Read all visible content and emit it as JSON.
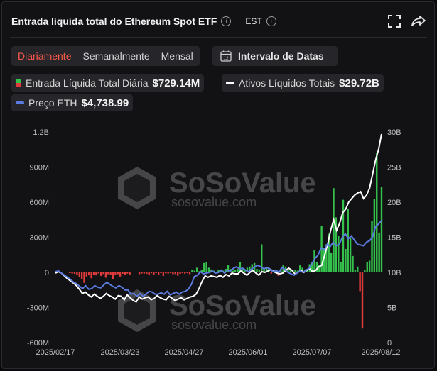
{
  "header": {
    "title": "Entrada líquida total do Ethereum Spot ETF",
    "timezone": "EST"
  },
  "tabs": [
    {
      "label": "Diariamente",
      "active": true
    },
    {
      "label": "Semanalmente",
      "active": false
    },
    {
      "label": "Mensal",
      "active": false
    }
  ],
  "date_range": {
    "label": "Intervalo de Datas",
    "icon_text": "12"
  },
  "legend": {
    "daily": {
      "label": "Entrada Líquida Total Diária",
      "value": "$729.14M"
    },
    "assets": {
      "label": "Ativos Líquidos Totais",
      "value": "$29.72B"
    },
    "price": {
      "label": "Preço ETH",
      "value": "$4,738.99"
    }
  },
  "watermark": {
    "brand": "SoSoValue",
    "url": "sosovalue.com"
  },
  "colors": {
    "accent": "#ff5a4a",
    "positive": "#35c24c",
    "negative": "#e23b3b",
    "assets_line": "#ffffff",
    "price_line": "#5b7be0"
  },
  "chart_data": {
    "type": "bar",
    "x_ticks": [
      "2025/02/17",
      "2025/03/23",
      "2025/04/27",
      "2025/06/01",
      "2025/07/07",
      "2025/08/12"
    ],
    "x_range": [
      "2025/02/17",
      "2025/08/12"
    ],
    "left_axis": {
      "ticks": [
        "1.2B",
        "900M",
        "600M",
        "300M",
        "0",
        "-300M",
        "-600M"
      ],
      "ylim": [
        -600,
        1200
      ],
      "unit": "M USD"
    },
    "right_axis": {
      "ticks": [
        "30B",
        "25B",
        "20B",
        "15B",
        "10B",
        "5B",
        "0"
      ],
      "ylim": [
        0,
        30
      ],
      "unit": "B USD"
    },
    "series": [
      {
        "name": "Entrada Líquida Total Diária",
        "type": "bar",
        "axis": "left",
        "values": [
          0,
          0,
          0,
          0,
          0,
          0,
          -5,
          -8,
          -12,
          -20,
          -40,
          -60,
          -90,
          -35,
          -25,
          -50,
          -18,
          -25,
          -10,
          -30,
          -14,
          -45,
          -15,
          -20,
          -55,
          -18,
          -15,
          -35,
          -12,
          -20,
          -10,
          -18,
          0,
          0,
          0,
          -15,
          -9,
          -10,
          -12,
          -25,
          -8,
          -18,
          -5,
          -20,
          -6,
          -30,
          -8,
          -10,
          -6,
          -15,
          -14,
          -28,
          -12,
          -6,
          -10,
          -6,
          -15,
          25,
          15,
          40,
          10,
          20,
          80,
          90,
          40,
          25,
          15,
          -10,
          20,
          25,
          15,
          30,
          60,
          30,
          15,
          20,
          30,
          90,
          40,
          25,
          40,
          50,
          70,
          80,
          30,
          25,
          240,
          30,
          40,
          40,
          -10,
          20,
          20,
          -30,
          30,
          60,
          50,
          25,
          30,
          20,
          20,
          15,
          60,
          40,
          25,
          30,
          70,
          85,
          190,
          90,
          60,
          400,
          210,
          240,
          330,
          170,
          720,
          470,
          310,
          90,
          620,
          200,
          540,
          290,
          140,
          20,
          50,
          -160,
          -480,
          20,
          90,
          100,
          440,
          630,
          1020,
          340,
          730
        ]
      },
      {
        "name": "Ativos Líquidos Totais",
        "type": "line",
        "axis": "right",
        "values": [
          9.9,
          10.1,
          9.9,
          9.5,
          9.1,
          8.8,
          8.5,
          8.1,
          7.6,
          7.0,
          7.2,
          6.8,
          6.5,
          6.9,
          6.6,
          6.3,
          6.6,
          7.0,
          6.7,
          6.5,
          6.2,
          6.7,
          6.6,
          6.1,
          6.8,
          6.4,
          6.0,
          5.8,
          6.5,
          6.2,
          6.4,
          6.5,
          6.1,
          6.3,
          6.7,
          6.4,
          6.2,
          6.1,
          6.6,
          6.3,
          6.0,
          6.2,
          6.4,
          6.1,
          6.3,
          6.5,
          6.6,
          6.9,
          7.7,
          8.7,
          9.5,
          9.3,
          9.5,
          9.4,
          9.3,
          9.6,
          9.3,
          9.7,
          9.5,
          9.9,
          9.8,
          9.8,
          10.2,
          9.9,
          9.6,
          10.0,
          10.3,
          9.9,
          9.6,
          10.1,
          10.0,
          10.2,
          10.4,
          10.1,
          9.9,
          9.8,
          9.9,
          10.3,
          10.6,
          10.3,
          9.8,
          10.0,
          10.3,
          10.0,
          10.3,
          10.5,
          10.1,
          10.3,
          10.8,
          11.0,
          12.5,
          14.0,
          16.0,
          17.5,
          16.0,
          17.0,
          18.5,
          19.0,
          20.0,
          20.5,
          21.0,
          21.3,
          21.5,
          20.5,
          21.0,
          22.0,
          24.0,
          26.0,
          27.5,
          29.7
        ]
      },
      {
        "name": "Preço ETH",
        "type": "line",
        "axis": "right",
        "values": [
          10.1,
          10.2,
          9.9,
          9.6,
          9.3,
          9.0,
          8.6,
          8.4,
          8.0,
          7.7,
          8.1,
          7.6,
          7.7,
          8.1,
          7.9,
          7.8,
          8.2,
          8.6,
          8.3,
          8.0,
          7.8,
          8.1,
          7.9,
          7.5,
          7.5,
          6.9,
          7.0,
          6.6,
          7.0,
          6.6,
          6.9,
          7.3,
          7.2,
          6.9,
          6.9,
          7.1,
          6.9,
          7.3,
          6.8,
          7.0,
          7.2,
          6.9,
          7.2,
          7.3,
          7.6,
          8.3,
          9.4,
          9.6,
          10.1,
          9.8,
          9.9,
          10.0,
          10.2,
          9.9,
          10.0,
          10.3,
          9.9,
          10.3,
          10.2,
          10.6,
          10.8,
          10.5,
          10.6,
          10.3,
          10.1,
          10.5,
          10.8,
          11.0,
          10.8,
          10.5,
          10.7,
          10.5,
          10.1,
          10.3,
          10.0,
          10.7,
          10.4,
          10.0,
          9.8,
          9.6,
          9.9,
          10.2,
          10.0,
          10.3,
          10.6,
          11.3,
          12.0,
          12.5,
          13.5,
          13.2,
          14.0,
          13.7,
          14.3,
          13.8,
          14.0,
          15.0,
          15.5,
          14.8,
          15.2,
          14.6,
          14.0,
          13.9,
          13.8,
          14.3,
          14.5,
          15.0,
          16.5,
          16.9,
          17.4
        ]
      }
    ],
    "grid": false,
    "legend_position": "top-left"
  }
}
